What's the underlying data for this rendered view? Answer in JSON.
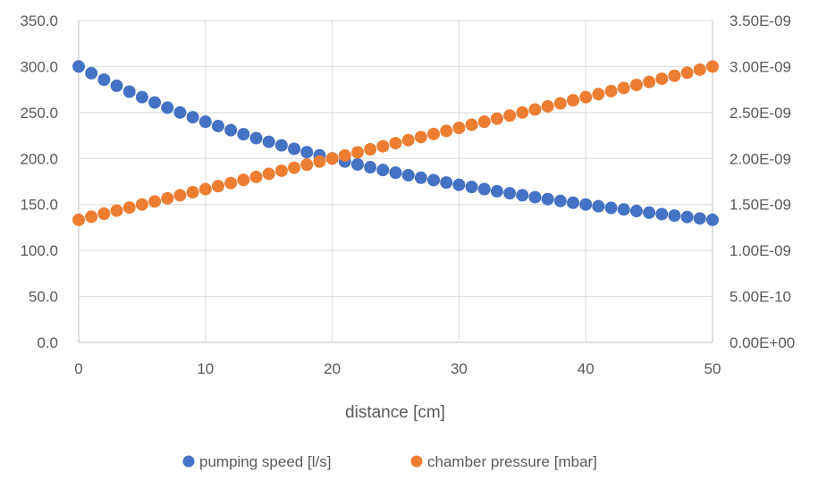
{
  "chart_data": {
    "type": "scatter",
    "title": "",
    "xlabel": "distance [cm]",
    "ylabel": "",
    "y2label": "",
    "xlim": [
      0,
      50
    ],
    "ylim": [
      0,
      350
    ],
    "y2lim": [
      0,
      3.5e-09
    ],
    "x_ticks": [
      0,
      10,
      20,
      30,
      40,
      50
    ],
    "x_tick_labels": [
      "0",
      "10",
      "20",
      "30",
      "40",
      "50"
    ],
    "y_ticks": [
      0,
      50,
      100,
      150,
      200,
      250,
      300,
      350
    ],
    "y_tick_labels": [
      "0.0",
      "50.0",
      "100.0",
      "150.0",
      "200.0",
      "250.0",
      "300.0",
      "350.0"
    ],
    "y2_ticks": [
      0,
      5e-10,
      1e-09,
      1.5e-09,
      2e-09,
      2.5e-09,
      3e-09,
      3.5e-09
    ],
    "y2_tick_labels": [
      "0.00E+00",
      "5.00E-10",
      "1.00E-09",
      "1.50E-09",
      "2.00E-09",
      "2.50E-09",
      "3.00E-09",
      "3.50E-09"
    ],
    "grid": true,
    "legend_position": "bottom",
    "x": [
      0,
      1,
      2,
      3,
      4,
      5,
      6,
      7,
      8,
      9,
      10,
      11,
      12,
      13,
      14,
      15,
      16,
      17,
      18,
      19,
      20,
      21,
      22,
      23,
      24,
      25,
      26,
      27,
      28,
      29,
      30,
      31,
      32,
      33,
      34,
      35,
      36,
      37,
      38,
      39,
      40,
      41,
      42,
      43,
      44,
      45,
      46,
      47,
      48,
      49,
      50
    ],
    "series": [
      {
        "name": "pumping speed [l/s]",
        "axis": "left",
        "color": "#4472c4",
        "values": [
          300.0,
          292.7,
          285.7,
          279.1,
          272.7,
          266.7,
          260.9,
          255.3,
          250.0,
          244.9,
          240.0,
          235.3,
          230.8,
          226.4,
          222.2,
          218.2,
          214.3,
          210.5,
          206.9,
          203.4,
          200.0,
          196.7,
          193.5,
          190.5,
          187.5,
          184.6,
          181.8,
          179.1,
          176.5,
          173.9,
          171.4,
          169.0,
          166.7,
          164.4,
          162.2,
          160.0,
          157.9,
          155.8,
          153.8,
          151.9,
          150.0,
          148.1,
          146.3,
          144.6,
          142.9,
          141.2,
          139.5,
          137.9,
          136.4,
          134.8,
          133.3
        ]
      },
      {
        "name": "chamber pressure [mbar]",
        "axis": "right",
        "color": "#ed7d31",
        "values": [
          1.333e-09,
          1.367e-09,
          1.4e-09,
          1.433e-09,
          1.467e-09,
          1.5e-09,
          1.533e-09,
          1.567e-09,
          1.6e-09,
          1.633e-09,
          1.667e-09,
          1.7e-09,
          1.733e-09,
          1.767e-09,
          1.8e-09,
          1.833e-09,
          1.867e-09,
          1.9e-09,
          1.933e-09,
          1.967e-09,
          2e-09,
          2.033e-09,
          2.067e-09,
          2.1e-09,
          2.133e-09,
          2.167e-09,
          2.2e-09,
          2.233e-09,
          2.267e-09,
          2.3e-09,
          2.333e-09,
          2.367e-09,
          2.4e-09,
          2.433e-09,
          2.467e-09,
          2.5e-09,
          2.533e-09,
          2.567e-09,
          2.6e-09,
          2.633e-09,
          2.667e-09,
          2.7e-09,
          2.733e-09,
          2.767e-09,
          2.8e-09,
          2.833e-09,
          2.867e-09,
          2.9e-09,
          2.933e-09,
          2.967e-09,
          3e-09
        ]
      }
    ]
  }
}
